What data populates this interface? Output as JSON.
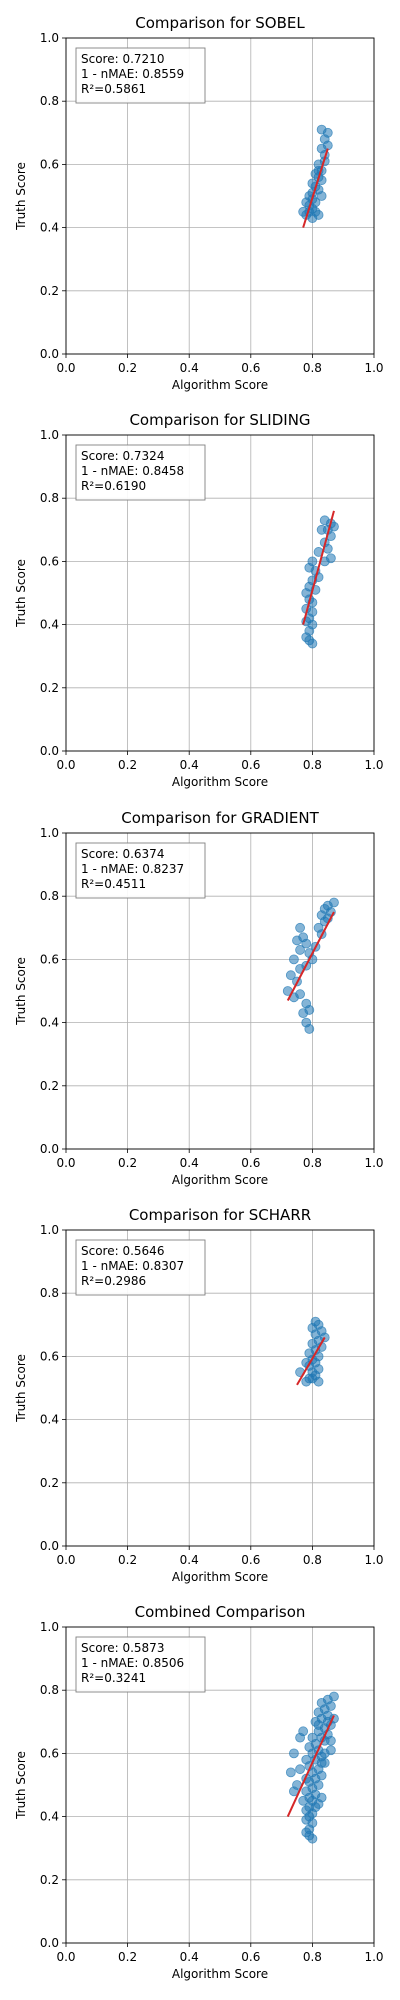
{
  "chart_data": [
    {
      "type": "scatter",
      "title": "Comparison for SOBEL",
      "xlabel": "Algorithm Score",
      "ylabel": "Truth Score",
      "xlim": [
        0,
        1
      ],
      "ylim": [
        0,
        1
      ],
      "xticks": [
        "0.0",
        "0.2",
        "0.4",
        "0.6",
        "0.8",
        "1.0"
      ],
      "yticks": [
        "0.0",
        "0.2",
        "0.4",
        "0.6",
        "0.8",
        "1.0"
      ],
      "grid": true,
      "stats": [
        "Score: 0.7210",
        "1 - nMAE: 0.8559",
        "R²=0.5861"
      ],
      "fit_line": {
        "x": [
          0.77,
          0.85
        ],
        "y": [
          0.4,
          0.65
        ]
      },
      "series": [
        {
          "color": "#1f77b4",
          "points": [
            [
              0.83,
              0.71
            ],
            [
              0.85,
              0.7
            ],
            [
              0.84,
              0.68
            ],
            [
              0.85,
              0.66
            ],
            [
              0.83,
              0.65
            ],
            [
              0.84,
              0.63
            ],
            [
              0.82,
              0.6
            ],
            [
              0.83,
              0.58
            ],
            [
              0.81,
              0.57
            ],
            [
              0.82,
              0.56
            ],
            [
              0.83,
              0.55
            ],
            [
              0.8,
              0.54
            ],
            [
              0.81,
              0.53
            ],
            [
              0.82,
              0.52
            ],
            [
              0.8,
              0.51
            ],
            [
              0.79,
              0.5
            ],
            [
              0.8,
              0.49
            ],
            [
              0.81,
              0.48
            ],
            [
              0.79,
              0.47
            ],
            [
              0.78,
              0.48
            ],
            [
              0.8,
              0.46
            ],
            [
              0.81,
              0.45
            ],
            [
              0.78,
              0.44
            ],
            [
              0.79,
              0.45
            ],
            [
              0.82,
              0.44
            ],
            [
              0.8,
              0.43
            ],
            [
              0.77,
              0.45
            ],
            [
              0.83,
              0.5
            ],
            [
              0.82,
              0.58
            ],
            [
              0.84,
              0.61
            ]
          ]
        }
      ]
    },
    {
      "type": "scatter",
      "title": "Comparison for SLIDING",
      "xlabel": "Algorithm Score",
      "ylabel": "Truth Score",
      "xlim": [
        0,
        1
      ],
      "ylim": [
        0,
        1
      ],
      "xticks": [
        "0.0",
        "0.2",
        "0.4",
        "0.6",
        "0.8",
        "1.0"
      ],
      "yticks": [
        "0.0",
        "0.2",
        "0.4",
        "0.6",
        "0.8",
        "1.0"
      ],
      "grid": true,
      "stats": [
        "Score: 0.7324",
        "1 - nMAE: 0.8458",
        "R²=0.6190"
      ],
      "fit_line": {
        "x": [
          0.77,
          0.87
        ],
        "y": [
          0.4,
          0.76
        ]
      },
      "series": [
        {
          "color": "#1f77b4",
          "points": [
            [
              0.84,
              0.73
            ],
            [
              0.86,
              0.72
            ],
            [
              0.87,
              0.71
            ],
            [
              0.85,
              0.7
            ],
            [
              0.83,
              0.7
            ],
            [
              0.86,
              0.68
            ],
            [
              0.84,
              0.66
            ],
            [
              0.85,
              0.64
            ],
            [
              0.82,
              0.63
            ],
            [
              0.86,
              0.61
            ],
            [
              0.84,
              0.6
            ],
            [
              0.8,
              0.6
            ],
            [
              0.79,
              0.58
            ],
            [
              0.81,
              0.57
            ],
            [
              0.82,
              0.55
            ],
            [
              0.8,
              0.54
            ],
            [
              0.79,
              0.52
            ],
            [
              0.81,
              0.51
            ],
            [
              0.78,
              0.5
            ],
            [
              0.79,
              0.48
            ],
            [
              0.8,
              0.47
            ],
            [
              0.78,
              0.45
            ],
            [
              0.8,
              0.44
            ],
            [
              0.79,
              0.42
            ],
            [
              0.78,
              0.41
            ],
            [
              0.8,
              0.4
            ],
            [
              0.79,
              0.38
            ],
            [
              0.78,
              0.36
            ],
            [
              0.79,
              0.35
            ],
            [
              0.8,
              0.34
            ]
          ]
        }
      ]
    },
    {
      "type": "scatter",
      "title": "Comparison for GRADIENT",
      "xlabel": "Algorithm Score",
      "ylabel": "Truth Score",
      "xlim": [
        0,
        1
      ],
      "ylim": [
        0,
        1
      ],
      "xticks": [
        "0.0",
        "0.2",
        "0.4",
        "0.6",
        "0.8",
        "1.0"
      ],
      "yticks": [
        "0.0",
        "0.2",
        "0.4",
        "0.6",
        "0.8",
        "1.0"
      ],
      "grid": true,
      "stats": [
        "Score: 0.6374",
        "1 - nMAE: 0.8237",
        "R²=0.4511"
      ],
      "fit_line": {
        "x": [
          0.72,
          0.87
        ],
        "y": [
          0.47,
          0.75
        ]
      },
      "series": [
        {
          "color": "#1f77b4",
          "points": [
            [
              0.87,
              0.78
            ],
            [
              0.85,
              0.77
            ],
            [
              0.84,
              0.76
            ],
            [
              0.86,
              0.75
            ],
            [
              0.83,
              0.74
            ],
            [
              0.85,
              0.73
            ],
            [
              0.84,
              0.72
            ],
            [
              0.82,
              0.7
            ],
            [
              0.76,
              0.7
            ],
            [
              0.83,
              0.68
            ],
            [
              0.77,
              0.67
            ],
            [
              0.75,
              0.66
            ],
            [
              0.78,
              0.65
            ],
            [
              0.81,
              0.64
            ],
            [
              0.76,
              0.63
            ],
            [
              0.79,
              0.62
            ],
            [
              0.8,
              0.6
            ],
            [
              0.74,
              0.6
            ],
            [
              0.78,
              0.58
            ],
            [
              0.76,
              0.57
            ],
            [
              0.73,
              0.55
            ],
            [
              0.75,
              0.53
            ],
            [
              0.72,
              0.5
            ],
            [
              0.76,
              0.49
            ],
            [
              0.74,
              0.48
            ],
            [
              0.78,
              0.46
            ],
            [
              0.79,
              0.44
            ],
            [
              0.77,
              0.43
            ],
            [
              0.78,
              0.4
            ],
            [
              0.79,
              0.38
            ]
          ]
        }
      ]
    },
    {
      "type": "scatter",
      "title": "Comparison for SCHARR",
      "xlabel": "Algorithm Score",
      "ylabel": "Truth Score",
      "xlim": [
        0,
        1
      ],
      "ylim": [
        0,
        1
      ],
      "xticks": [
        "0.0",
        "0.2",
        "0.4",
        "0.6",
        "0.8",
        "1.0"
      ],
      "yticks": [
        "0.0",
        "0.2",
        "0.4",
        "0.6",
        "0.8",
        "1.0"
      ],
      "grid": true,
      "stats": [
        "Score: 0.5646",
        "1 - nMAE: 0.8307",
        "R²=0.2986"
      ],
      "fit_line": {
        "x": [
          0.75,
          0.84
        ],
        "y": [
          0.51,
          0.66
        ]
      },
      "series": [
        {
          "color": "#1f77b4",
          "points": [
            [
              0.81,
              0.71
            ],
            [
              0.82,
              0.7
            ],
            [
              0.8,
              0.69
            ],
            [
              0.83,
              0.68
            ],
            [
              0.81,
              0.67
            ],
            [
              0.84,
              0.66
            ],
            [
              0.82,
              0.65
            ],
            [
              0.8,
              0.64
            ],
            [
              0.83,
              0.63
            ],
            [
              0.81,
              0.62
            ],
            [
              0.79,
              0.61
            ],
            [
              0.82,
              0.6
            ],
            [
              0.8,
              0.59
            ],
            [
              0.81,
              0.58
            ],
            [
              0.78,
              0.58
            ],
            [
              0.79,
              0.57
            ],
            [
              0.82,
              0.56
            ],
            [
              0.8,
              0.55
            ],
            [
              0.76,
              0.55
            ],
            [
              0.81,
              0.54
            ],
            [
              0.79,
              0.53
            ],
            [
              0.8,
              0.53
            ],
            [
              0.82,
              0.52
            ],
            [
              0.78,
              0.52
            ]
          ]
        }
      ]
    },
    {
      "type": "scatter",
      "title": "Combined Comparison",
      "xlabel": "Algorithm Score",
      "ylabel": "Truth Score",
      "xlim": [
        0,
        1
      ],
      "ylim": [
        0,
        1
      ],
      "xticks": [
        "0.0",
        "0.2",
        "0.4",
        "0.6",
        "0.8",
        "1.0"
      ],
      "yticks": [
        "0.0",
        "0.2",
        "0.4",
        "0.6",
        "0.8",
        "1.0"
      ],
      "grid": true,
      "stats": [
        "Score: 0.5873",
        "1 - nMAE: 0.8506",
        "R²=0.3241"
      ],
      "fit_line": {
        "x": [
          0.72,
          0.87
        ],
        "y": [
          0.4,
          0.72
        ]
      },
      "series": [
        {
          "color": "#1f77b4",
          "points": [
            [
              0.87,
              0.78
            ],
            [
              0.85,
              0.77
            ],
            [
              0.83,
              0.76
            ],
            [
              0.86,
              0.75
            ],
            [
              0.84,
              0.74
            ],
            [
              0.82,
              0.73
            ],
            [
              0.85,
              0.72
            ],
            [
              0.87,
              0.71
            ],
            [
              0.83,
              0.71
            ],
            [
              0.81,
              0.7
            ],
            [
              0.86,
              0.69
            ],
            [
              0.84,
              0.68
            ],
            [
              0.82,
              0.67
            ],
            [
              0.77,
              0.67
            ],
            [
              0.85,
              0.66
            ],
            [
              0.83,
              0.65
            ],
            [
              0.8,
              0.65
            ],
            [
              0.76,
              0.65
            ],
            [
              0.84,
              0.64
            ],
            [
              0.81,
              0.63
            ],
            [
              0.79,
              0.62
            ],
            [
              0.82,
              0.61
            ],
            [
              0.86,
              0.61
            ],
            [
              0.8,
              0.6
            ],
            [
              0.74,
              0.6
            ],
            [
              0.83,
              0.59
            ],
            [
              0.78,
              0.58
            ],
            [
              0.81,
              0.58
            ],
            [
              0.84,
              0.57
            ],
            [
              0.79,
              0.56
            ],
            [
              0.76,
              0.55
            ],
            [
              0.82,
              0.55
            ],
            [
              0.8,
              0.54
            ],
            [
              0.73,
              0.54
            ],
            [
              0.83,
              0.53
            ],
            [
              0.78,
              0.52
            ],
            [
              0.81,
              0.52
            ],
            [
              0.79,
              0.51
            ],
            [
              0.75,
              0.5
            ],
            [
              0.82,
              0.5
            ],
            [
              0.8,
              0.49
            ],
            [
              0.78,
              0.48
            ],
            [
              0.74,
              0.48
            ],
            [
              0.81,
              0.47
            ],
            [
              0.79,
              0.46
            ],
            [
              0.83,
              0.46
            ],
            [
              0.8,
              0.45
            ],
            [
              0.77,
              0.45
            ],
            [
              0.82,
              0.44
            ],
            [
              0.79,
              0.43
            ],
            [
              0.81,
              0.43
            ],
            [
              0.78,
              0.42
            ],
            [
              0.8,
              0.41
            ],
            [
              0.79,
              0.4
            ],
            [
              0.78,
              0.39
            ],
            [
              0.8,
              0.38
            ],
            [
              0.79,
              0.36
            ],
            [
              0.78,
              0.35
            ],
            [
              0.79,
              0.34
            ],
            [
              0.8,
              0.33
            ],
            [
              0.85,
              0.7
            ],
            [
              0.84,
              0.6
            ],
            [
              0.83,
              0.57
            ],
            [
              0.86,
              0.64
            ],
            [
              0.82,
              0.69
            ]
          ]
        }
      ]
    }
  ]
}
